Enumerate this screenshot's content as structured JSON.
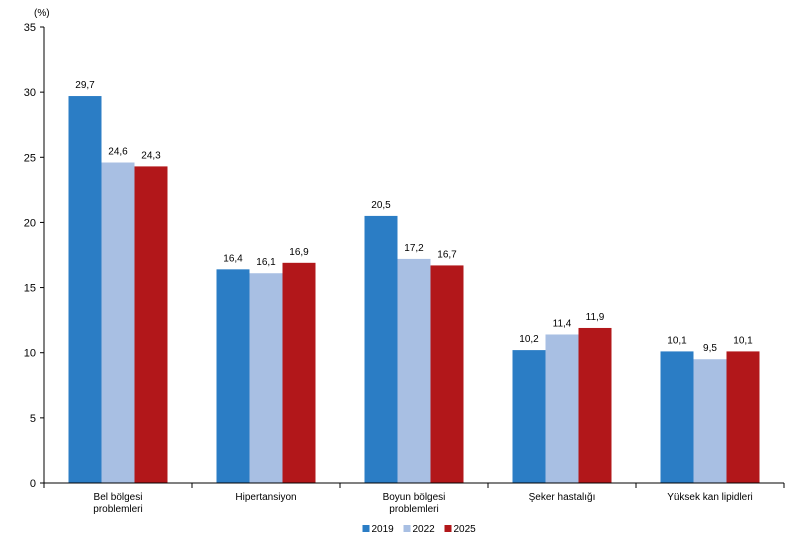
{
  "chart_data": {
    "type": "bar",
    "title": "",
    "unit_label": "(%)",
    "xlabel": "",
    "ylabel": "",
    "ylim": [
      0,
      35
    ],
    "yticks": [
      0,
      5,
      10,
      15,
      20,
      25,
      30,
      35
    ],
    "grid": false,
    "legend_position": "bottom",
    "categories": [
      [
        "Bel bölgesi",
        "problemleri"
      ],
      [
        "Hipertansiyon"
      ],
      [
        "Boyun bölgesi",
        "problemleri"
      ],
      [
        "Şeker hastalığı"
      ],
      [
        "Yüksek kan lipidleri"
      ]
    ],
    "series": [
      {
        "name": "2019",
        "color": "#2b7dc5",
        "values": [
          29.7,
          16.4,
          20.5,
          10.2,
          10.1
        ],
        "labels": [
          "29,7",
          "16,4",
          "20,5",
          "10,2",
          "10,1"
        ]
      },
      {
        "name": "2022",
        "color": "#a8bfe3",
        "values": [
          24.6,
          16.1,
          17.2,
          11.4,
          9.5
        ],
        "labels": [
          "24,6",
          "16,1",
          "17,2",
          "11,4",
          "9,5"
        ]
      },
      {
        "name": "2025",
        "color": "#b2171a",
        "values": [
          24.3,
          16.9,
          16.7,
          11.9,
          10.1
        ],
        "labels": [
          "24,3",
          "16,9",
          "16,7",
          "11,9",
          "10,1"
        ]
      }
    ]
  }
}
